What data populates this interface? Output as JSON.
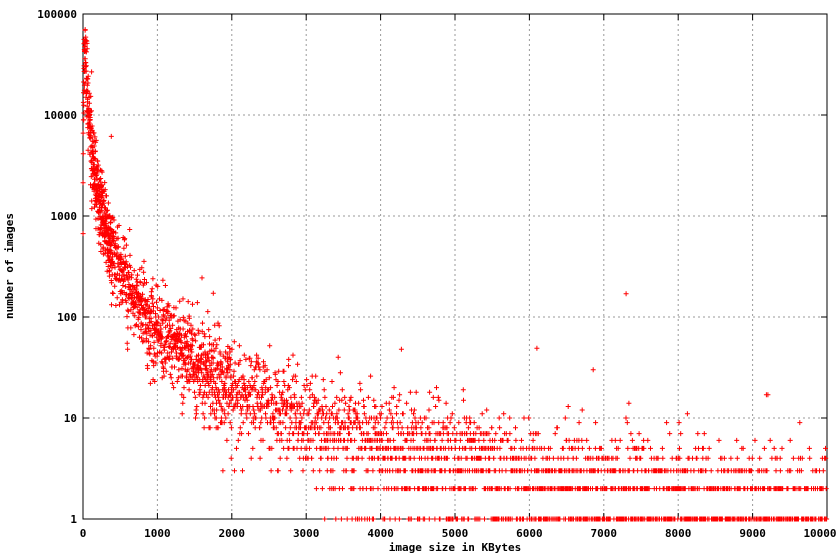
{
  "page": {
    "background": "#ffffff"
  },
  "chart_data": {
    "type": "scatter",
    "title": "",
    "xlabel": "image size in KBytes",
    "ylabel": "number of images",
    "xlim": [
      0,
      10000
    ],
    "ylim": [
      1,
      100000
    ],
    "y_scale": "log10",
    "grid": true,
    "legend": "none",
    "marker": {
      "shape": "plus",
      "color": "#ff0000",
      "size": 5
    },
    "axis_color": "#000000",
    "grid_color": "#9a9a9a",
    "x_ticks": {
      "values": [
        0,
        1000,
        2000,
        3000,
        4000,
        5000,
        6000,
        7000,
        8000,
        9000,
        10000
      ],
      "labels": [
        "0",
        "1000",
        "2000",
        "3000",
        "4000",
        "5000",
        "6000",
        "7000",
        "8000",
        "9000",
        "10000"
      ]
    },
    "y_ticks": {
      "values": [
        1,
        10,
        100,
        1000,
        10000,
        100000
      ],
      "labels": [
        "1",
        "10",
        "100",
        "1000",
        "10000",
        "100000"
      ]
    },
    "distribution": {
      "description": "count of images per file-size bin; dense column near 0 KB peaking around 60000 images at ~30 KB, power-law decay to discrete integer-count stripes (5,4,3,2,1 images) beyond ~2000 KB, reaching single images out to 10000 KB",
      "seed": 42,
      "peak_x": 30,
      "peak_count": 60000,
      "max_count": 70000,
      "rise_exp": 1.2,
      "decay_exp": 1.9,
      "noise_sigma": 0.45,
      "outlier_prob": 0.03,
      "outlier_sigma": 1.2,
      "segments": [
        {
          "from": 1,
          "to": 400,
          "step": 1
        },
        {
          "from": 400,
          "to": 2000,
          "step": 2
        },
        {
          "from": 2000,
          "to": 10000,
          "step": 3
        }
      ]
    },
    "outliers": [
      [
        7300,
        170
      ],
      [
        850,
        100
      ],
      [
        2350,
        35
      ],
      [
        3430,
        40
      ],
      [
        3460,
        28
      ],
      [
        1640,
        45
      ],
      [
        2700,
        23
      ],
      [
        4150,
        16
      ],
      [
        5600,
        8
      ],
      [
        6100,
        7
      ],
      [
        4650,
        12
      ],
      [
        5200,
        9
      ]
    ]
  }
}
